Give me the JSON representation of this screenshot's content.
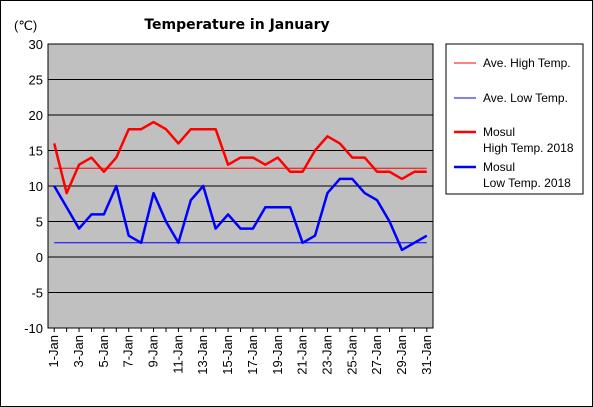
{
  "chart_data": {
    "type": "line",
    "title": "Temperature in January",
    "unit": "(℃)",
    "ylim": [
      -10,
      30
    ],
    "yticks": [
      30,
      25,
      20,
      15,
      10,
      5,
      0,
      -5,
      -10
    ],
    "grid": true,
    "legend_position": "right",
    "x": [
      "1-Jan",
      "2-Jan",
      "3-Jan",
      "4-Jan",
      "5-Jan",
      "6-Jan",
      "7-Jan",
      "8-Jan",
      "9-Jan",
      "10-Jan",
      "11-Jan",
      "12-Jan",
      "13-Jan",
      "14-Jan",
      "15-Jan",
      "16-Jan",
      "17-Jan",
      "18-Jan",
      "19-Jan",
      "20-Jan",
      "21-Jan",
      "22-Jan",
      "23-Jan",
      "24-Jan",
      "25-Jan",
      "26-Jan",
      "27-Jan",
      "28-Jan",
      "29-Jan",
      "30-Jan",
      "31-Jan"
    ],
    "xtick_labels": [
      "1-Jan",
      "3-Jan",
      "5-Jan",
      "7-Jan",
      "9-Jan",
      "11-Jan",
      "13-Jan",
      "15-Jan",
      "17-Jan",
      "19-Jan",
      "21-Jan",
      "23-Jan",
      "25-Jan",
      "27-Jan",
      "29-Jan",
      "31-Jan"
    ],
    "series": [
      {
        "name": "Ave. High Temp.",
        "color": "#ff0000",
        "width": 1,
        "values": [
          12.5,
          12.5,
          12.5,
          12.5,
          12.5,
          12.5,
          12.5,
          12.5,
          12.5,
          12.5,
          12.5,
          12.5,
          12.5,
          12.5,
          12.5,
          12.5,
          12.5,
          12.5,
          12.5,
          12.5,
          12.5,
          12.5,
          12.5,
          12.5,
          12.5,
          12.5,
          12.5,
          12.5,
          12.5,
          12.5,
          12.5
        ]
      },
      {
        "name": "Ave. Low Temp.",
        "color": "#0000ff",
        "width": 1,
        "values": [
          2,
          2,
          2,
          2,
          2,
          2,
          2,
          2,
          2,
          2,
          2,
          2,
          2,
          2,
          2,
          2,
          2,
          2,
          2,
          2,
          2,
          2,
          2,
          2,
          2,
          2,
          2,
          2,
          2,
          2,
          2
        ]
      },
      {
        "name": "Mosul High Temp. 2018",
        "legend_lines": [
          "Mosul",
          "High Temp. 2018"
        ],
        "color": "#ff0000",
        "width": 2.5,
        "values": [
          16,
          9,
          13,
          14,
          12,
          14,
          18,
          18,
          19,
          18,
          16,
          18,
          18,
          18,
          13,
          14,
          14,
          13,
          14,
          12,
          12,
          15,
          17,
          16,
          14,
          14,
          12,
          12,
          11,
          12,
          12
        ]
      },
      {
        "name": "Mosul Low Temp. 2018",
        "legend_lines": [
          "Mosul",
          "Low Temp. 2018"
        ],
        "color": "#0000ff",
        "width": 2.5,
        "values": [
          10,
          7,
          4,
          6,
          6,
          10,
          3,
          2,
          9,
          5,
          2,
          8,
          10,
          4,
          6,
          4,
          4,
          7,
          7,
          7,
          2,
          3,
          9,
          11,
          11,
          9,
          8,
          5,
          1,
          2,
          3
        ]
      }
    ]
  }
}
